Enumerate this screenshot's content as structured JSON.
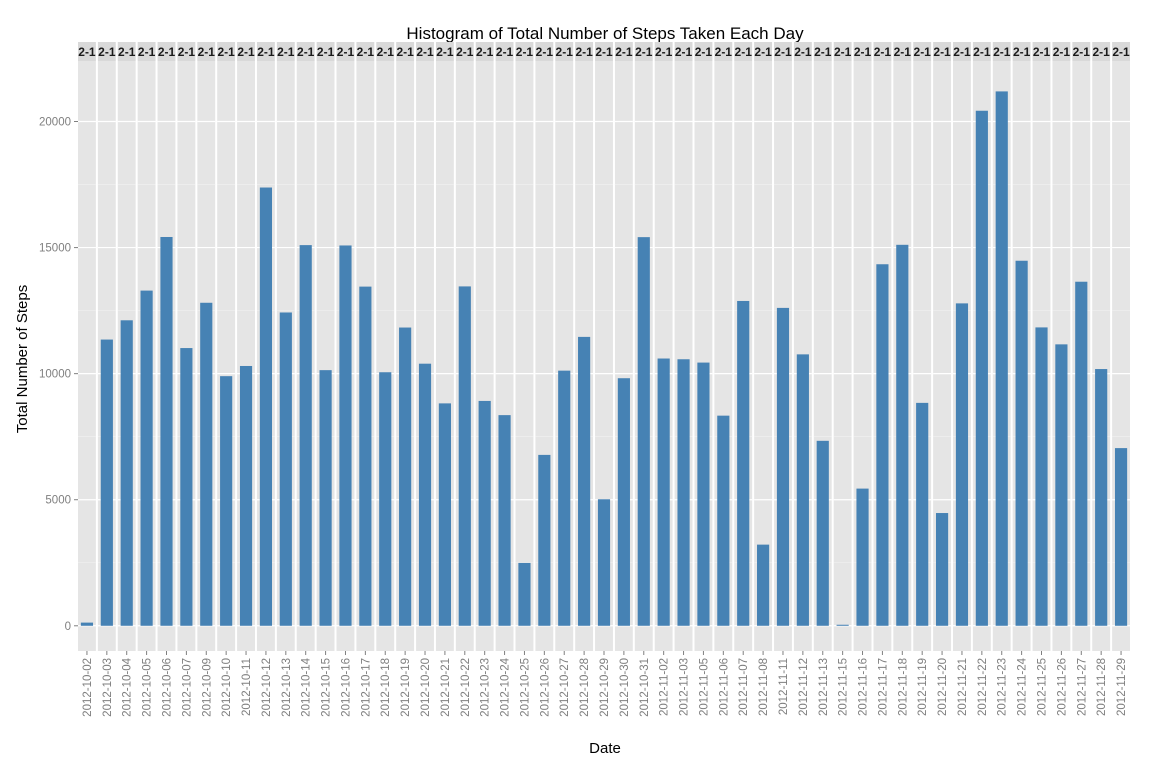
{
  "chart_data": {
    "type": "bar",
    "title": "Histogram of Total Number of Steps Taken Each Day",
    "xlabel": "Date",
    "ylabel": "Total Number of Steps",
    "ylim": [
      -1000,
      22400
    ],
    "yticks": [
      0,
      5000,
      10000,
      15000,
      20000
    ],
    "ytick_labels": [
      "0",
      "5000",
      "10000",
      "15000",
      "20000"
    ],
    "facet_strip_label": "2-1",
    "grid": true,
    "legend": "none",
    "bar_color": "#4682B4",
    "panel_color": "#E5E5E5",
    "strip_color": "#D9D9D9",
    "categories": [
      "2012-10-02",
      "2012-10-03",
      "2012-10-04",
      "2012-10-05",
      "2012-10-06",
      "2012-10-07",
      "2012-10-09",
      "2012-10-10",
      "2012-10-11",
      "2012-10-12",
      "2012-10-13",
      "2012-10-14",
      "2012-10-15",
      "2012-10-16",
      "2012-10-17",
      "2012-10-18",
      "2012-10-19",
      "2012-10-20",
      "2012-10-21",
      "2012-10-22",
      "2012-10-23",
      "2012-10-24",
      "2012-10-25",
      "2012-10-26",
      "2012-10-27",
      "2012-10-28",
      "2012-10-29",
      "2012-10-30",
      "2012-10-31",
      "2012-11-02",
      "2012-11-03",
      "2012-11-05",
      "2012-11-06",
      "2012-11-07",
      "2012-11-08",
      "2012-11-11",
      "2012-11-12",
      "2012-11-13",
      "2012-11-15",
      "2012-11-16",
      "2012-11-17",
      "2012-11-18",
      "2012-11-19",
      "2012-11-20",
      "2012-11-21",
      "2012-11-22",
      "2012-11-23",
      "2012-11-24",
      "2012-11-25",
      "2012-11-26",
      "2012-11-27",
      "2012-11-28",
      "2012-11-29"
    ],
    "values": [
      126,
      11352,
      12116,
      13294,
      15420,
      11015,
      12811,
      9900,
      10304,
      17382,
      12426,
      15098,
      10139,
      15084,
      13452,
      10056,
      11829,
      10395,
      8821,
      13460,
      8918,
      8355,
      2492,
      6778,
      10119,
      11458,
      5018,
      9819,
      15414,
      10600,
      10571,
      10439,
      8334,
      12883,
      3219,
      12608,
      10765,
      7336,
      41,
      5441,
      14339,
      15110,
      8841,
      4472,
      12787,
      20427,
      21194,
      14478,
      11834,
      11162,
      13646,
      10183,
      7047
    ]
  }
}
